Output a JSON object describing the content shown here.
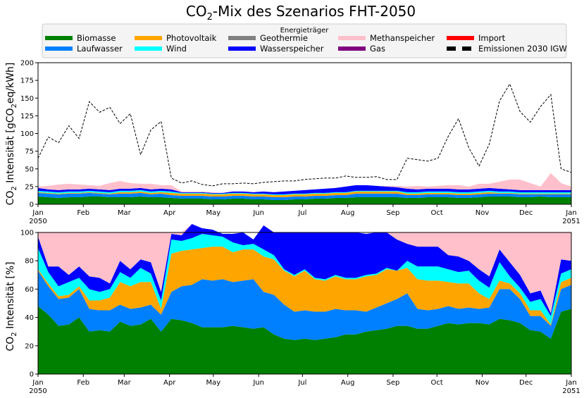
{
  "chart_data": [
    {
      "type": "area",
      "title_main": "CO",
      "title_sub": "2",
      "title_rest": "-Mix des Szenarios FHT-2050",
      "ylabel_main": "CO",
      "ylabel_sub": "2",
      "ylabel_rest": " Intensität [gCO",
      "ylabel_sub2": "2",
      "ylabel_end": "eq/kWh]",
      "ylim": [
        0,
        200
      ],
      "yticks": [
        "0",
        "25",
        "50",
        "75",
        "100",
        "125",
        "150",
        "175",
        "200"
      ],
      "x_tick_labels": [
        "Jan",
        "Feb",
        "Mar",
        "Apr",
        "May",
        "Jun",
        "Jul",
        "Aug",
        "Sep",
        "Oct",
        "Nov",
        "Dec",
        "Jan"
      ],
      "x_year_start": "2050",
      "x_year_end": "2051",
      "x_weeks": [
        0,
        1,
        2,
        3,
        4,
        5,
        6,
        7,
        8,
        9,
        10,
        11,
        12,
        13,
        14,
        15,
        16,
        17,
        18,
        19,
        20,
        21,
        22,
        23,
        24,
        25,
        26,
        27,
        28,
        29,
        30,
        31,
        32,
        33,
        34,
        35,
        36,
        37,
        38,
        39,
        40,
        41,
        42,
        43,
        44,
        45,
        46,
        47,
        48,
        49,
        50,
        51,
        52
      ],
      "series": [
        {
          "name": "Biomasse",
          "color": "#008000",
          "values": [
            11,
            10,
            9,
            10,
            10,
            11,
            11,
            10,
            10,
            10,
            11,
            10,
            10,
            9,
            8,
            8,
            8,
            7,
            7,
            8,
            8,
            7,
            7,
            6,
            6,
            7,
            7,
            8,
            8,
            9,
            9,
            10,
            10,
            10,
            10,
            10,
            9,
            9,
            10,
            10,
            10,
            9,
            9,
            10,
            11,
            11,
            11,
            10,
            10,
            11,
            10,
            10,
            10
          ]
        },
        {
          "name": "Laufwasser",
          "color": "#0080ff",
          "values": [
            5,
            5,
            5,
            5,
            5,
            5,
            4,
            4,
            5,
            5,
            5,
            4,
            5,
            4,
            4,
            4,
            4,
            4,
            4,
            4,
            4,
            4,
            4,
            4,
            4,
            4,
            4,
            4,
            4,
            4,
            4,
            5,
            5,
            5,
            5,
            5,
            4,
            4,
            4,
            4,
            4,
            4,
            4,
            4,
            4,
            4,
            4,
            4,
            4,
            3,
            4,
            4,
            4
          ]
        },
        {
          "name": "Photovoltaik",
          "color": "#ffa500",
          "values": [
            1,
            1,
            1,
            1,
            1,
            1,
            1,
            1,
            2,
            2,
            2,
            2,
            2,
            3,
            3,
            3,
            3,
            3,
            3,
            3,
            3,
            3,
            3,
            3,
            3,
            3,
            3,
            3,
            3,
            3,
            3,
            3,
            3,
            3,
            3,
            3,
            2,
            2,
            2,
            2,
            2,
            2,
            2,
            2,
            2,
            1,
            1,
            1,
            1,
            1,
            1,
            1,
            1
          ]
        },
        {
          "name": "Wind",
          "color": "#00ffff",
          "values": [
            2,
            2,
            2,
            2,
            2,
            2,
            2,
            2,
            2,
            2,
            2,
            2,
            2,
            2,
            1,
            1,
            1,
            1,
            1,
            1,
            1,
            1,
            1,
            1,
            1,
            1,
            1,
            1,
            1,
            1,
            1,
            1,
            1,
            1,
            1,
            1,
            2,
            2,
            2,
            2,
            2,
            2,
            2,
            2,
            2,
            2,
            2,
            2,
            2,
            2,
            2,
            2,
            2
          ]
        },
        {
          "name": "Wasserspeicher",
          "color": "#0000ff",
          "values": [
            4,
            3,
            3,
            3,
            3,
            3,
            3,
            3,
            3,
            3,
            3,
            3,
            3,
            3,
            1,
            1,
            1,
            1,
            1,
            2,
            2,
            2,
            3,
            3,
            4,
            4,
            5,
            5,
            6,
            6,
            8,
            8,
            8,
            7,
            6,
            5,
            5,
            4,
            4,
            4,
            4,
            4,
            4,
            4,
            4,
            4,
            3,
            3,
            3,
            3,
            3,
            3,
            3
          ]
        },
        {
          "name": "Methanspeicher",
          "color": "#ffc0cb",
          "values": [
            2,
            5,
            8,
            8,
            7,
            5,
            5,
            10,
            11,
            8,
            6,
            8,
            5,
            6,
            1,
            1,
            1,
            1,
            0,
            0,
            0,
            0,
            0,
            0,
            0,
            0,
            0,
            0,
            0,
            0,
            0,
            0,
            0,
            0,
            1,
            2,
            3,
            5,
            3,
            4,
            5,
            6,
            4,
            7,
            6,
            10,
            14,
            15,
            10,
            5,
            24,
            10,
            5
          ]
        }
      ],
      "emissions_name": "Emissionen 2030 IGW",
      "emissions": [
        65,
        95,
        87,
        111,
        93,
        145,
        130,
        137,
        114,
        128,
        70,
        105,
        117,
        37,
        30,
        33,
        28,
        26,
        29,
        29,
        30,
        29,
        31,
        32,
        33,
        33,
        35,
        36,
        37,
        37,
        40,
        38,
        38,
        39,
        35,
        35,
        65,
        63,
        61,
        65,
        96,
        121,
        80,
        54,
        85,
        146,
        170,
        131,
        116,
        138,
        155,
        50,
        45
      ]
    },
    {
      "type": "area",
      "ylabel_main": "CO",
      "ylabel_sub": "2",
      "ylabel_rest": " Intensität [%]",
      "ylim": [
        0,
        100
      ],
      "yticks": [
        "0",
        "20",
        "40",
        "60",
        "80",
        "100"
      ],
      "x_tick_labels": [
        "Jan",
        "Feb",
        "Mar",
        "Apr",
        "May",
        "Jun",
        "Jul",
        "Aug",
        "Sep",
        "Oct",
        "Nov",
        "Dec",
        "Jan"
      ],
      "x_year_start": "2050",
      "x_year_end": "2051",
      "x_weeks": [
        0,
        1,
        2,
        3,
        4,
        5,
        6,
        7,
        8,
        9,
        10,
        11,
        12,
        13,
        14,
        15,
        16,
        17,
        18,
        19,
        20,
        21,
        22,
        23,
        24,
        25,
        26,
        27,
        28,
        29,
        30,
        31,
        32,
        33,
        34,
        35,
        36,
        37,
        38,
        39,
        40,
        41,
        42,
        43,
        44,
        45,
        46,
        47,
        48,
        49,
        50,
        51,
        52
      ],
      "series": [
        {
          "name": "Biomasse",
          "color": "#008000",
          "values": [
            48,
            42,
            34,
            35,
            40,
            30,
            31,
            30,
            37,
            34,
            35,
            39,
            30,
            39,
            38,
            36,
            33,
            33,
            33,
            34,
            33,
            32,
            33,
            28,
            25,
            24,
            25,
            24,
            25,
            26,
            28,
            28,
            30,
            31,
            32,
            34,
            34,
            32,
            32,
            34,
            36,
            35,
            36,
            36,
            35,
            39,
            38,
            36,
            31,
            30,
            25,
            44,
            46
          ]
        },
        {
          "name": "Laufwasser",
          "color": "#0080ff",
          "values": [
            25,
            20,
            19,
            19,
            20,
            16,
            14,
            15,
            12,
            12,
            12,
            10,
            12,
            19,
            24,
            27,
            34,
            33,
            34,
            31,
            33,
            35,
            25,
            28,
            24,
            20,
            20,
            20,
            19,
            20,
            17,
            17,
            14,
            16,
            18,
            19,
            23,
            14,
            13,
            12,
            12,
            11,
            11,
            10,
            12,
            21,
            22,
            17,
            10,
            11,
            9,
            16,
            17
          ]
        },
        {
          "name": "Photovoltaik",
          "color": "#ffa500",
          "values": [
            1,
            2,
            2,
            2,
            2,
            6,
            7,
            9,
            16,
            16,
            18,
            16,
            4,
            27,
            25,
            25,
            22,
            24,
            23,
            21,
            22,
            21,
            25,
            25,
            24,
            25,
            28,
            23,
            22,
            23,
            22,
            22,
            25,
            23,
            24,
            20,
            18,
            21,
            21,
            20,
            17,
            18,
            17,
            11,
            6,
            6,
            4,
            4,
            4,
            4,
            1,
            5,
            5
          ]
        },
        {
          "name": "Wind",
          "color": "#00ffff",
          "values": [
            15,
            8,
            7,
            9,
            6,
            8,
            6,
            6,
            7,
            6,
            10,
            6,
            6,
            10,
            7,
            8,
            10,
            8,
            7,
            7,
            3,
            4,
            5,
            3,
            1,
            1,
            1,
            1,
            1,
            1,
            1,
            1,
            1,
            1,
            1,
            0,
            5,
            9,
            10,
            10,
            9,
            8,
            9,
            9,
            8,
            13,
            5,
            4,
            6,
            8,
            6,
            6,
            6
          ]
        },
        {
          "name": "Wasserspeicher",
          "color": "#0000ff",
          "values": [
            8,
            4,
            14,
            5,
            8,
            9,
            10,
            4,
            8,
            6,
            6,
            8,
            6,
            4,
            4,
            10,
            4,
            4,
            2,
            6,
            9,
            3,
            17,
            16,
            26,
            30,
            26,
            32,
            33,
            30,
            32,
            32,
            29,
            29,
            25,
            22,
            12,
            14,
            14,
            14,
            10,
            11,
            7,
            8,
            8,
            9,
            10,
            9,
            6,
            6,
            2,
            10,
            6
          ]
        },
        {
          "name": "Methanspeicher",
          "color": "#ffc0cb",
          "values": [
            3,
            24,
            24,
            30,
            24,
            31,
            32,
            36,
            20,
            26,
            19,
            21,
            42,
            1,
            2,
            0,
            0,
            0,
            0,
            0,
            0,
            0,
            0,
            0,
            0,
            0,
            0,
            0,
            0,
            0,
            0,
            0,
            0,
            0,
            0,
            5,
            8,
            10,
            10,
            10,
            16,
            17,
            20,
            26,
            31,
            12,
            21,
            30,
            43,
            41,
            57,
            19,
            20
          ]
        }
      ]
    }
  ],
  "legend": {
    "title": "Energieträger",
    "entries": [
      {
        "label": "Biomasse",
        "color": "#008000",
        "style": "solid"
      },
      {
        "label": "Laufwasser",
        "color": "#0080ff",
        "style": "solid"
      },
      {
        "label": "Photovoltaik",
        "color": "#ffa500",
        "style": "solid"
      },
      {
        "label": "Wind",
        "color": "#00ffff",
        "style": "solid"
      },
      {
        "label": "Geothermie",
        "color": "#808080",
        "style": "solid"
      },
      {
        "label": "Wasserspeicher",
        "color": "#0000ff",
        "style": "solid"
      },
      {
        "label": "Methanspeicher",
        "color": "#ffc0cb",
        "style": "solid"
      },
      {
        "label": "Gas",
        "color": "#800080",
        "style": "solid"
      },
      {
        "label": "Import",
        "color": "#ff0000",
        "style": "solid"
      },
      {
        "label": "Emissionen 2030 IGW",
        "color": "#000000",
        "style": "dashed"
      }
    ]
  }
}
